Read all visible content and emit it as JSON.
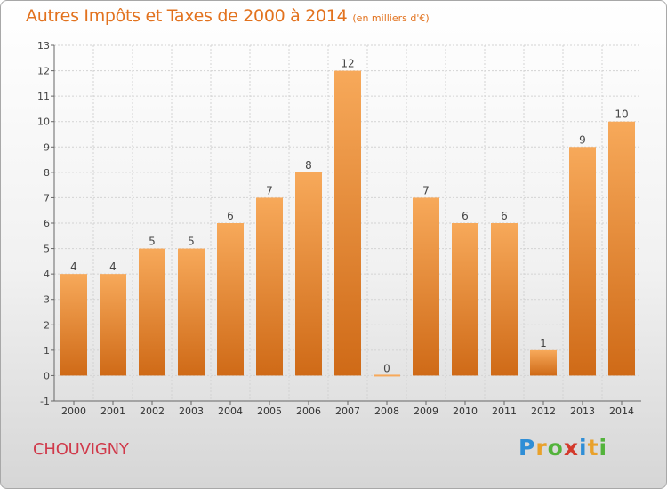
{
  "title": "Autres Impôts et Taxes de 2000 à 2014",
  "unit": "(en milliers d'€)",
  "commune": "CHOUVIGNY",
  "logo": "Proxiti",
  "colors": {
    "title": "#e2721e",
    "bar_light": "#f7a95a",
    "bar_dark": "#cf6a17",
    "commune": "#d0394a"
  },
  "chart_data": {
    "type": "bar",
    "title": "Autres Impôts et Taxes de 2000 à 2014",
    "subtitle": "(en milliers d'€)",
    "categories": [
      "2000",
      "2001",
      "2002",
      "2003",
      "2004",
      "2005",
      "2006",
      "2007",
      "2008",
      "2009",
      "2010",
      "2011",
      "2012",
      "2013",
      "2014"
    ],
    "values": [
      4,
      4,
      5,
      5,
      6,
      7,
      8,
      12,
      0,
      7,
      6,
      6,
      1,
      9,
      10
    ],
    "ylim": [
      -1,
      13
    ],
    "yticks": [
      -1,
      0,
      1,
      2,
      3,
      4,
      5,
      6,
      7,
      8,
      9,
      10,
      11,
      12,
      13
    ],
    "grid": true
  }
}
